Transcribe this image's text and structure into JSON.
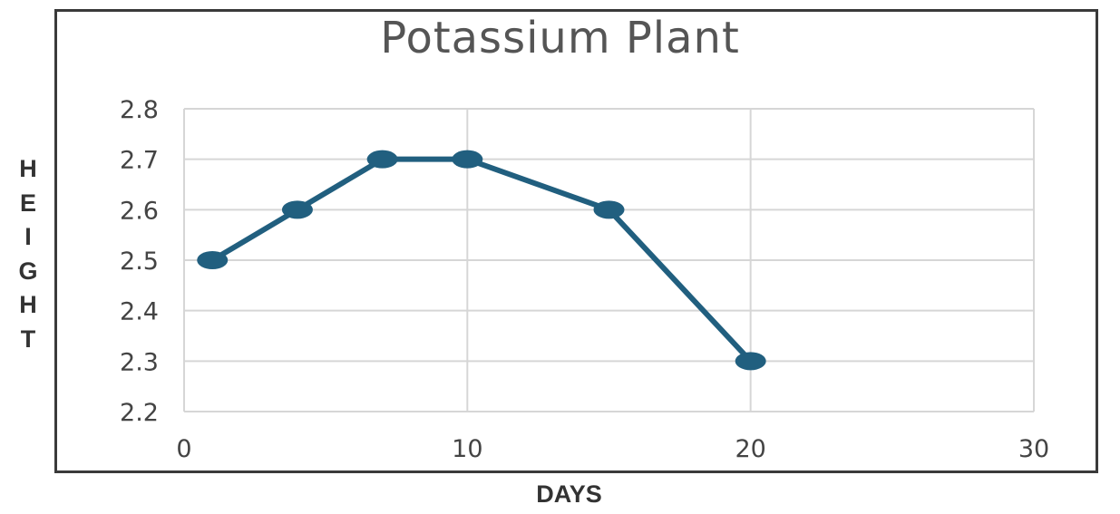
{
  "chart_data": {
    "type": "line",
    "title": "Potassium Plant",
    "xlabel": "DAYS",
    "ylabel": "HEIGHT",
    "xlim": [
      0,
      30
    ],
    "ylim": [
      2.2,
      2.8
    ],
    "xticks": [
      "0",
      "10",
      "20",
      "30"
    ],
    "yticks": [
      "2.2",
      "2.3",
      "2.4",
      "2.5",
      "2.6",
      "2.7",
      "2.8"
    ],
    "grid": true,
    "series": [
      {
        "x": [
          1,
          4,
          7,
          10,
          15,
          20
        ],
        "y": [
          2.5,
          2.6,
          2.7,
          2.7,
          2.6,
          2.3
        ]
      }
    ],
    "colors": {
      "line": "#215f7f",
      "grid": "#d6d6d6"
    }
  }
}
